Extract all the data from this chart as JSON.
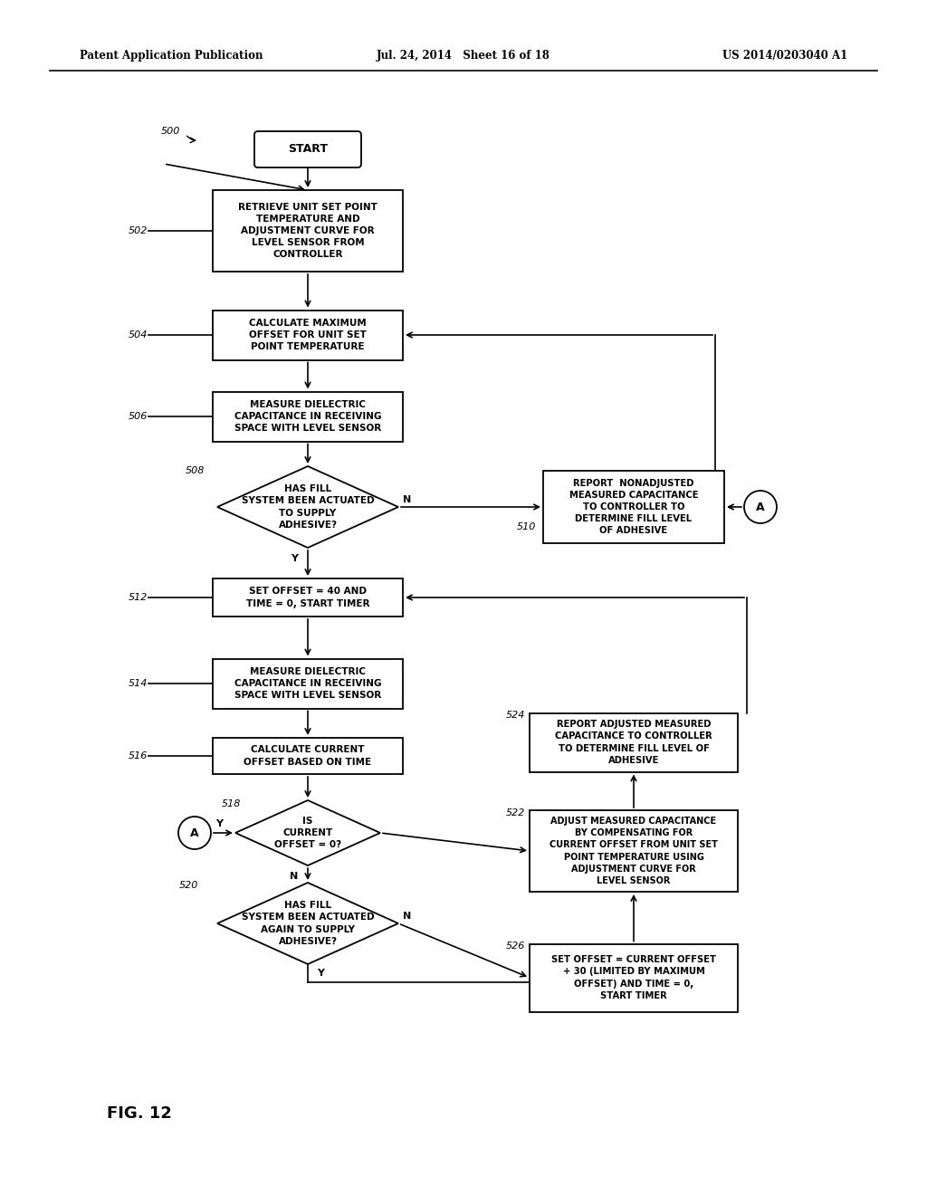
{
  "bg_color": "#ffffff",
  "header_left": "Patent Application Publication",
  "header_center": "Jul. 24, 2014   Sheet 16 of 18",
  "header_right": "US 2014/0203040 A1",
  "figure_label": "FIG. 12"
}
